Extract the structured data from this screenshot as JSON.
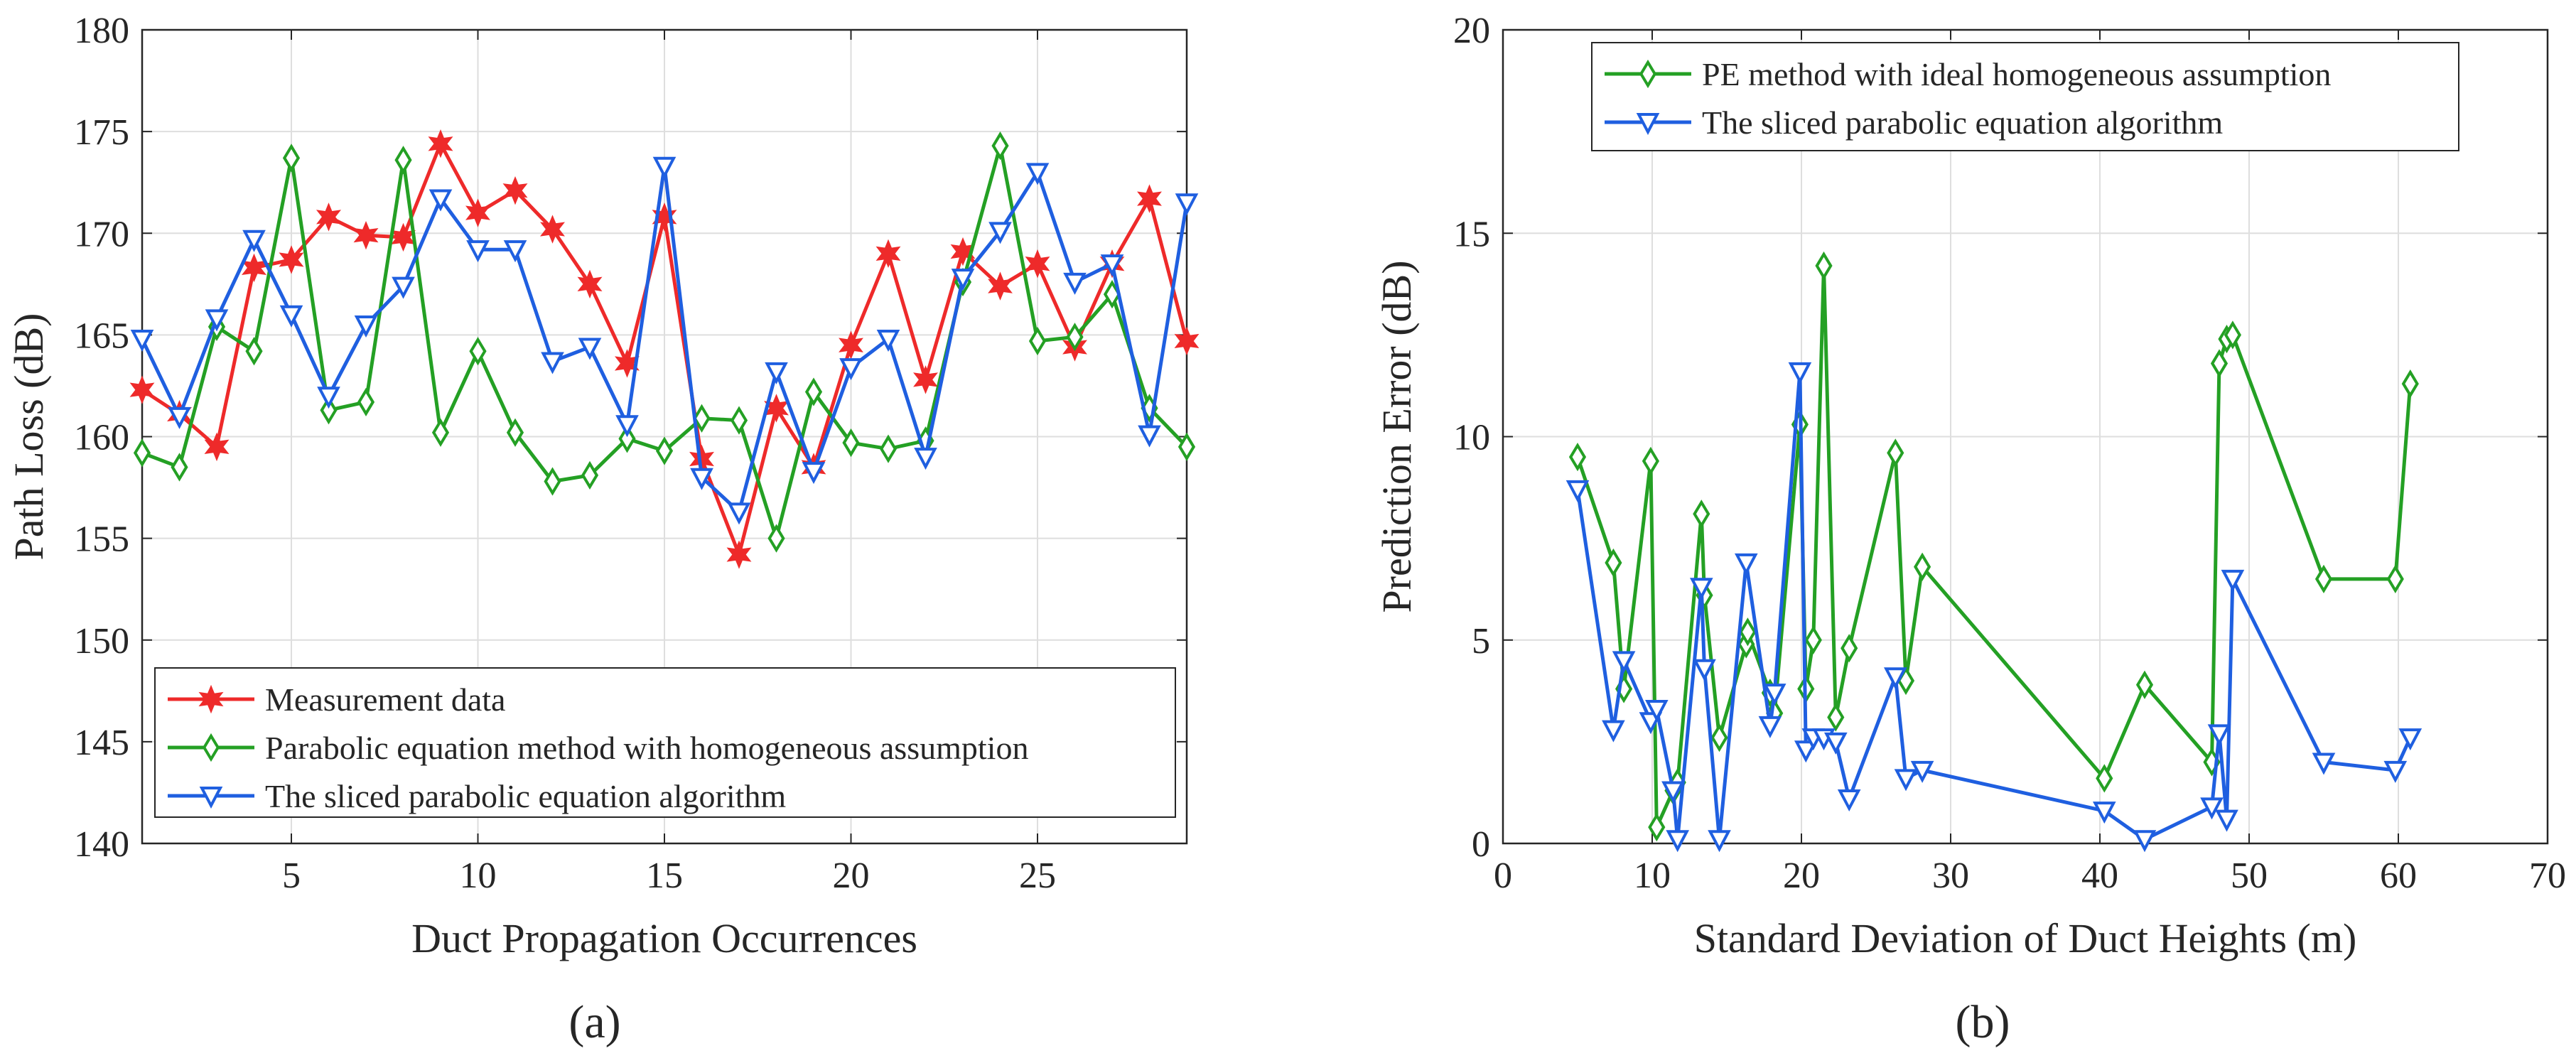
{
  "captions": {
    "a": "(a)",
    "b": "(b)"
  },
  "chart_data": [
    {
      "type": "line",
      "panel": "a",
      "xlabel": "Duct Propagation Occurrences",
      "ylabel": "Path Loss (dB)",
      "xlim": [
        1,
        29
      ],
      "ylim": [
        140,
        180
      ],
      "xticks": [
        5,
        10,
        15,
        20,
        25
      ],
      "yticks": [
        140,
        145,
        150,
        155,
        160,
        165,
        170,
        175,
        180
      ],
      "grid": true,
      "legend_position": "bottom-right",
      "series": [
        {
          "name": "Measurement data",
          "color": "#ee2a2a",
          "marker": "hexagram",
          "x": [
            1,
            2,
            3,
            4,
            5,
            6,
            7,
            8,
            9,
            10,
            11,
            12,
            13,
            14,
            15,
            16,
            17,
            18,
            19,
            20,
            21,
            22,
            23,
            24,
            25,
            26,
            27,
            28,
            29
          ],
          "y": [
            162.3,
            161.1,
            159.5,
            168.3,
            168.7,
            170.8,
            169.9,
            169.8,
            174.4,
            171.0,
            172.1,
            170.2,
            167.5,
            163.6,
            170.8,
            158.9,
            154.2,
            161.4,
            158.5,
            164.5,
            169.0,
            162.8,
            169.1,
            167.4,
            168.5,
            164.4,
            168.5,
            171.7,
            164.7
          ]
        },
        {
          "name": "Parabolic equation method with homogeneous assumption",
          "color": "#24a024",
          "marker": "diamond",
          "x": [
            1,
            2,
            3,
            4,
            5,
            6,
            7,
            8,
            9,
            10,
            11,
            12,
            13,
            14,
            15,
            16,
            17,
            18,
            19,
            20,
            21,
            22,
            23,
            24,
            25,
            26,
            27,
            28,
            29
          ],
          "y": [
            159.2,
            158.5,
            165.4,
            164.2,
            173.7,
            161.3,
            161.7,
            173.6,
            160.2,
            164.2,
            160.2,
            157.8,
            158.1,
            159.9,
            159.3,
            160.9,
            160.8,
            155.0,
            162.2,
            159.7,
            159.4,
            159.8,
            167.6,
            174.3,
            164.7,
            164.9,
            167.0,
            161.4,
            159.5
          ]
        },
        {
          "name": "The sliced parabolic equation algorithm",
          "color": "#1f5fe0",
          "marker": "triangle-down",
          "x": [
            1,
            2,
            3,
            4,
            5,
            6,
            7,
            8,
            9,
            10,
            11,
            12,
            13,
            14,
            15,
            16,
            17,
            18,
            19,
            20,
            21,
            22,
            23,
            24,
            25,
            26,
            27,
            28,
            29
          ],
          "y": [
            164.8,
            161.0,
            165.8,
            169.7,
            166.0,
            162.0,
            165.5,
            167.4,
            171.7,
            169.2,
            169.2,
            163.7,
            164.4,
            160.6,
            173.3,
            158.0,
            156.3,
            163.2,
            158.3,
            163.4,
            164.8,
            159.0,
            167.8,
            170.1,
            173.0,
            167.6,
            168.5,
            160.1,
            171.5
          ]
        }
      ]
    },
    {
      "type": "line",
      "panel": "b",
      "xlabel": "Standard Deviation of Duct Heights (m)",
      "ylabel": "Prediction Error (dB)",
      "xlim": [
        0,
        70
      ],
      "ylim": [
        0,
        20
      ],
      "xticks": [
        0,
        10,
        20,
        30,
        40,
        50,
        60,
        70
      ],
      "yticks": [
        0,
        5,
        10,
        15,
        20
      ],
      "grid": true,
      "legend_position": "top-left",
      "series": [
        {
          "name": "PE method with ideal homogeneous assumption",
          "color": "#24a024",
          "marker": "diamond",
          "x": [
            5.0,
            7.4,
            8.1,
            9.9,
            10.3,
            11.4,
            11.7,
            13.3,
            13.5,
            14.5,
            16.3,
            16.4,
            17.9,
            18.2,
            19.9,
            20.3,
            20.8,
            21.5,
            22.3,
            23.2,
            26.3,
            27.0,
            28.1,
            40.3,
            43.0,
            47.5,
            48.0,
            48.5,
            48.9,
            55.0,
            59.8,
            60.8
          ],
          "y": [
            9.5,
            6.9,
            3.8,
            9.4,
            0.4,
            1.3,
            1.5,
            8.1,
            6.1,
            2.6,
            4.9,
            5.2,
            3.7,
            3.2,
            10.3,
            3.8,
            5.0,
            14.2,
            3.1,
            4.8,
            9.6,
            4.0,
            6.8,
            1.6,
            3.9,
            2.0,
            11.8,
            12.4,
            12.5,
            6.5,
            6.5,
            11.3
          ]
        },
        {
          "name": "The sliced parabolic equation algorithm",
          "color": "#1f5fe0",
          "marker": "triangle-down",
          "x": [
            5.0,
            7.4,
            8.1,
            9.9,
            10.3,
            11.4,
            11.7,
            13.3,
            13.5,
            14.5,
            16.3,
            17.9,
            18.2,
            19.9,
            20.3,
            20.8,
            21.5,
            22.3,
            23.2,
            26.3,
            27.0,
            28.1,
            40.3,
            43.0,
            47.5,
            48.0,
            48.5,
            48.9,
            55.0,
            59.8,
            60.8
          ],
          "y": [
            8.7,
            2.8,
            4.5,
            3.0,
            3.3,
            1.3,
            0.1,
            6.3,
            4.3,
            0.1,
            6.9,
            2.9,
            3.7,
            11.6,
            2.3,
            2.6,
            2.6,
            2.5,
            1.1,
            4.1,
            1.6,
            1.8,
            0.8,
            0.1,
            0.9,
            2.7,
            0.6,
            6.5,
            2.0,
            1.8,
            2.6
          ]
        }
      ]
    }
  ]
}
